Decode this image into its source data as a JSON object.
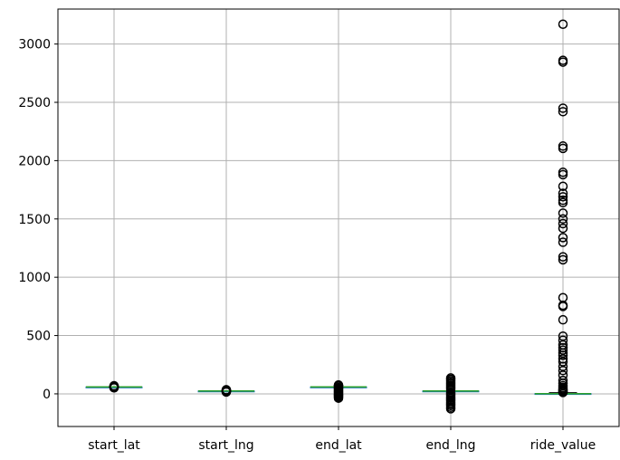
{
  "chart_data": {
    "type": "boxplot",
    "title": "",
    "xlabel": "",
    "ylabel": "",
    "categories": [
      "start_lat",
      "start_lng",
      "end_lat",
      "end_lng",
      "ride_value"
    ],
    "ylim": [
      -280,
      3300
    ],
    "yticks": [
      0,
      500,
      1000,
      1500,
      2000,
      2500,
      3000
    ],
    "grid": true,
    "box_color": "#1f77b4",
    "median_color": "#2ca02c",
    "outlier_color": "#000000",
    "series": [
      {
        "name": "start_lat",
        "whisker_low": 58.25,
        "q1": 59.38,
        "median": 59.43,
        "q3": 59.44,
        "whisker_high": 59.58,
        "outliers": [
          52,
          54,
          56,
          57,
          58,
          61,
          62,
          63,
          65,
          67,
          69
        ]
      },
      {
        "name": "start_lng",
        "whisker_low": 24.5,
        "q1": 24.72,
        "median": 24.74,
        "q3": 24.77,
        "whisker_high": 24.99,
        "outliers": [
          16,
          18,
          20,
          22,
          23,
          26,
          27,
          29,
          31,
          33,
          35
        ]
      },
      {
        "name": "end_lat",
        "whisker_low": 58.9,
        "q1": 59.3,
        "median": 59.43,
        "q3": 59.5,
        "whisker_high": 59.9,
        "outliers": [
          -37,
          -30,
          -22,
          -15,
          -8,
          -2,
          5,
          12,
          20,
          28,
          36,
          44,
          50,
          54,
          66,
          70,
          73,
          76
        ]
      },
      {
        "name": "end_lng",
        "whisker_low": 23.6,
        "q1": 24.6,
        "median": 24.74,
        "q3": 24.85,
        "whisker_high": 25.9,
        "outliers": [
          -128,
          -115,
          -100,
          -88,
          -75,
          -62,
          -50,
          -38,
          -25,
          -12,
          0,
          10,
          38,
          50,
          62,
          75,
          88,
          100,
          112,
          125,
          136
        ]
      },
      {
        "name": "ride_value",
        "whisker_low": 0.1,
        "q1": 0.55,
        "median": 1.06,
        "q3": 2.7,
        "whisker_high": 10,
        "outliers": [
          3170,
          2860,
          2845,
          2450,
          2420,
          2125,
          2105,
          1900,
          1880,
          1780,
          1720,
          1690,
          1660,
          1640,
          1550,
          1500,
          1460,
          1420,
          1340,
          1300,
          1175,
          1150,
          825,
          760,
          750,
          635,
          495,
          460,
          420,
          395,
          375,
          350,
          330,
          300,
          275,
          235,
          200,
          160,
          115,
          90,
          70,
          55,
          42,
          35,
          28,
          20,
          15,
          12
        ]
      }
    ]
  }
}
